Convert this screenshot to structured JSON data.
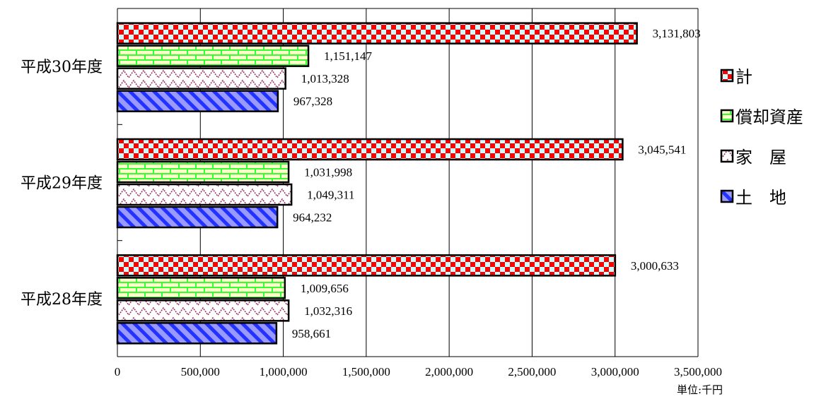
{
  "chart_data": {
    "type": "bar",
    "orientation": "horizontal",
    "categories": [
      "平成30年度",
      "平成29年度",
      "平成28年度"
    ],
    "series": [
      {
        "name": "計",
        "values": [
          3131803,
          3045541,
          3000633
        ],
        "value_labels": [
          "3,131,803",
          "3,045,541",
          "3,000,633"
        ],
        "color": "#ff0000",
        "pattern": "checker"
      },
      {
        "name": "償却資産",
        "values": [
          1151147,
          1031998,
          1009656
        ],
        "value_labels": [
          "1,151,147",
          "1,031,998",
          "1,009,656"
        ],
        "color": "#33ff33",
        "pattern": "brick"
      },
      {
        "name": "家　屋",
        "values": [
          1013328,
          1049311,
          1032316
        ],
        "value_labels": [
          "1,013,328",
          "1,049,311",
          "1,032,316"
        ],
        "color": "#993366",
        "pattern": "zigzag"
      },
      {
        "name": "土　地",
        "values": [
          967328,
          964232,
          958661
        ],
        "value_labels": [
          "967,328",
          "964,232",
          "958,661"
        ],
        "color": "#3333ff",
        "pattern": "diagonal"
      }
    ],
    "xlim": [
      0,
      3500000
    ],
    "x_ticks": [
      0,
      500000,
      1000000,
      1500000,
      2000000,
      2500000,
      3000000,
      3500000
    ],
    "x_tick_labels": [
      "0",
      "500,000",
      "1,000,000",
      "1,500,000",
      "2,000,000",
      "2,500,000",
      "3,000,000",
      "3,500,000"
    ],
    "grid": true,
    "legend_position": "right",
    "unit_label": "単位:千円"
  }
}
